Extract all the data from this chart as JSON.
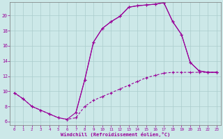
{
  "xlabel": "Windchill (Refroidissement éolien,°C)",
  "bg_color": "#cce8e8",
  "line_color": "#990099",
  "grid_color": "#aacccc",
  "xlim": [
    -0.5,
    23.5
  ],
  "ylim": [
    5.5,
    21.8
  ],
  "xticks": [
    0,
    1,
    2,
    3,
    4,
    5,
    6,
    7,
    8,
    9,
    10,
    11,
    12,
    13,
    14,
    15,
    16,
    17,
    18,
    19,
    20,
    21,
    22,
    23
  ],
  "yticks": [
    6,
    8,
    10,
    12,
    14,
    16,
    18,
    20
  ],
  "line1_x": [
    0,
    1,
    2,
    3,
    4,
    5,
    6,
    7,
    8,
    9,
    10,
    11,
    12,
    13,
    14,
    15,
    16,
    17,
    18,
    19,
    20,
    21,
    22,
    23
  ],
  "line1_y": [
    9.8,
    9.0,
    8.0,
    7.5,
    7.0,
    6.5,
    6.3,
    7.2,
    11.5,
    16.5,
    18.3,
    19.2,
    19.9,
    21.1,
    21.3,
    21.4,
    21.5,
    21.7,
    19.2,
    17.5,
    13.8,
    12.7,
    12.5,
    12.5
  ],
  "line2_x": [
    0,
    1,
    2,
    3,
    4,
    5,
    6,
    7,
    8,
    9,
    10,
    11,
    12,
    13,
    14,
    15,
    16,
    17,
    18,
    19,
    20,
    21,
    22,
    23
  ],
  "line2_y": [
    9.8,
    9.0,
    8.0,
    7.5,
    7.0,
    6.5,
    6.3,
    6.5,
    8.0,
    8.8,
    9.3,
    9.8,
    10.3,
    10.8,
    11.3,
    11.8,
    12.1,
    12.4,
    12.5,
    12.5,
    12.5,
    12.5,
    12.5,
    12.5
  ],
  "line3_x": [
    7,
    8,
    9,
    10,
    11,
    12,
    13,
    14,
    15,
    16,
    17,
    18,
    19,
    20,
    21,
    22,
    23
  ],
  "line3_y": [
    7.2,
    11.5,
    16.5,
    18.3,
    19.2,
    19.9,
    21.1,
    21.3,
    21.4,
    21.5,
    21.7,
    19.2,
    17.5,
    13.8,
    12.7,
    12.5,
    12.5
  ]
}
